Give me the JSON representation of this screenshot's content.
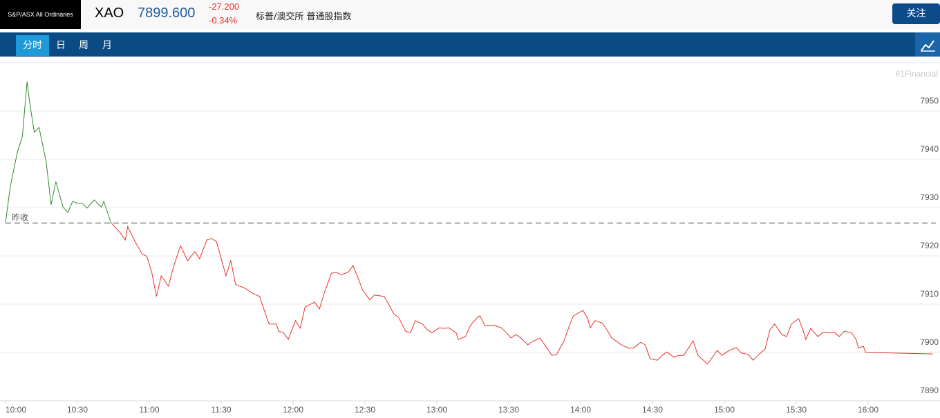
{
  "header": {
    "logo": "S&P/ASX All Ordinaries",
    "symbol": "XAO",
    "price": "7899.600",
    "change": "-27.200",
    "change_pct": "-0.34%",
    "name": "标普/澳交所 普通股指数",
    "follow_button": "关注"
  },
  "tabs": [
    "分时",
    "日",
    "周",
    "月"
  ],
  "watermark": "61Financial",
  "chart_data": {
    "type": "line",
    "xlim": [
      0,
      390
    ],
    "xticks": [
      {
        "value": 0,
        "label": "10:00"
      },
      {
        "value": 30,
        "label": "10:30"
      },
      {
        "value": 60,
        "label": "11:00"
      },
      {
        "value": 90,
        "label": "11:30"
      },
      {
        "value": 120,
        "label": "12:00"
      },
      {
        "value": 150,
        "label": "12:30"
      },
      {
        "value": 180,
        "label": "13:00"
      },
      {
        "value": 210,
        "label": "13:30"
      },
      {
        "value": 240,
        "label": "14:00"
      },
      {
        "value": 270,
        "label": "14:30"
      },
      {
        "value": 300,
        "label": "15:00"
      },
      {
        "value": 330,
        "label": "15:30"
      },
      {
        "value": 360,
        "label": "16:00"
      }
    ],
    "ylim": [
      7890,
      7960
    ],
    "yticks": [
      7890,
      7900,
      7910,
      7920,
      7930,
      7940,
      7950
    ],
    "grid": true,
    "reference_line": {
      "label": "昨收",
      "value": 7926.8,
      "color": "#888888"
    },
    "series": [
      {
        "color": "#2e8b2e",
        "x": [
          0,
          2,
          5,
          7,
          9,
          10,
          12,
          14,
          17,
          19,
          21,
          24,
          26,
          28,
          30,
          32,
          34,
          37,
          40,
          41,
          44
        ],
        "values": [
          7926.9,
          7934.4,
          7941.6,
          7944.7,
          7956.1,
          7951.9,
          7945.6,
          7946.6,
          7939.4,
          7930.6,
          7935.4,
          7930.1,
          7929.0,
          7931.3,
          7930.9,
          7930.9,
          7929.9,
          7931.6,
          7930.1,
          7931.3,
          7926.9
        ]
      },
      {
        "color": "#e8302a",
        "x": [
          44,
          48,
          50,
          51,
          54,
          57,
          59,
          61,
          63,
          65,
          68,
          70,
          73,
          76,
          79,
          81,
          84,
          86,
          88,
          92,
          94,
          96,
          100,
          103,
          106,
          108,
          110,
          113,
          114,
          116,
          118,
          121,
          123,
          125,
          129,
          131,
          133,
          136,
          138,
          140,
          143,
          145,
          147,
          149,
          152,
          154,
          158,
          160,
          162,
          164,
          167,
          169,
          171,
          174,
          176,
          178,
          181,
          183,
          185,
          188,
          189,
          192,
          194,
          197,
          198,
          200,
          204,
          207,
          209,
          211,
          213,
          215,
          218,
          220,
          223,
          226,
          228,
          230,
          233,
          235,
          237,
          241,
          243,
          244,
          246,
          249,
          251,
          253,
          257,
          260,
          262,
          265,
          267,
          269,
          272,
          274,
          276,
          279,
          281,
          283,
          287,
          289,
          293,
          295,
          297,
          299,
          302,
          305,
          307,
          310,
          312,
          314,
          317,
          319,
          321,
          324,
          326,
          328,
          331,
          333,
          334,
          336,
          339,
          341,
          343,
          346,
          348,
          350,
          353,
          355,
          356,
          358,
          359,
          370,
          387
        ],
        "values": [
          7926.9,
          7924.7,
          7923.3,
          7926.1,
          7923.0,
          7920.4,
          7919.9,
          7916.6,
          7911.6,
          7915.9,
          7913.7,
          7917.6,
          7922.1,
          7919.0,
          7920.9,
          7919.4,
          7923.3,
          7923.6,
          7923.0,
          7915.9,
          7919.0,
          7914.1,
          7913.3,
          7912.3,
          7911.6,
          7908.7,
          7905.9,
          7905.9,
          7904.4,
          7904.1,
          7902.7,
          7906.6,
          7905.0,
          7909.4,
          7910.4,
          7909.0,
          7912.3,
          7916.4,
          7916.6,
          7916.1,
          7916.6,
          7918.0,
          7915.6,
          7913.0,
          7910.9,
          7911.9,
          7911.6,
          7909.9,
          7908.0,
          7907.3,
          7904.4,
          7904.1,
          7906.6,
          7905.9,
          7904.7,
          7904.1,
          7905.1,
          7905.0,
          7905.1,
          7904.1,
          7902.7,
          7903.3,
          7905.6,
          7907.3,
          7907.6,
          7905.6,
          7905.6,
          7905.1,
          7904.1,
          7903.0,
          7903.7,
          7903.0,
          7901.6,
          7902.3,
          7903.0,
          7900.9,
          7899.4,
          7899.6,
          7902.3,
          7905.1,
          7907.6,
          7908.7,
          7907.0,
          7905.1,
          7906.6,
          7906.1,
          7904.7,
          7903.0,
          7901.6,
          7900.9,
          7900.9,
          7902.1,
          7901.6,
          7898.7,
          7898.4,
          7899.4,
          7900.1,
          7899.0,
          7899.4,
          7899.4,
          7902.4,
          7899.4,
          7897.6,
          7899.0,
          7900.4,
          7899.4,
          7900.4,
          7901.0,
          7899.9,
          7899.6,
          7898.4,
          7899.4,
          7900.7,
          7904.7,
          7905.9,
          7903.7,
          7903.3,
          7905.9,
          7907.0,
          7904.4,
          7902.7,
          7905.0,
          7903.3,
          7904.1,
          7904.1,
          7904.1,
          7903.3,
          7904.4,
          7904.1,
          7902.7,
          7900.9,
          7901.3,
          7900.0,
          7899.9,
          7899.7
        ]
      }
    ]
  }
}
